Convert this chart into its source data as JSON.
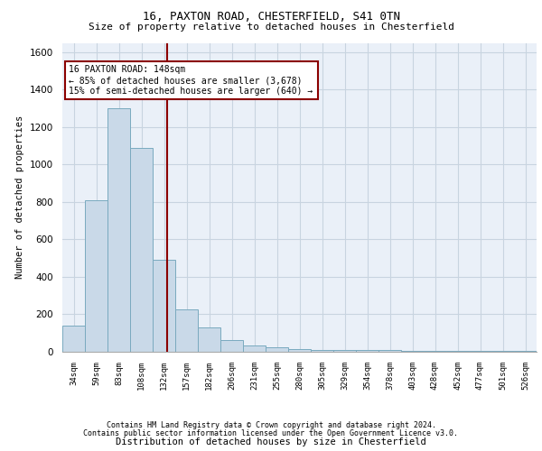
{
  "title1": "16, PAXTON ROAD, CHESTERFIELD, S41 0TN",
  "title2": "Size of property relative to detached houses in Chesterfield",
  "xlabel": "Distribution of detached houses by size in Chesterfield",
  "ylabel": "Number of detached properties",
  "bin_labels": [
    "34sqm",
    "59sqm",
    "83sqm",
    "108sqm",
    "132sqm",
    "157sqm",
    "182sqm",
    "206sqm",
    "231sqm",
    "255sqm",
    "280sqm",
    "305sqm",
    "329sqm",
    "354sqm",
    "378sqm",
    "403sqm",
    "428sqm",
    "452sqm",
    "477sqm",
    "501sqm",
    "526sqm"
  ],
  "bar_heights": [
    140,
    810,
    1300,
    1090,
    490,
    225,
    130,
    65,
    35,
    25,
    15,
    10,
    10,
    10,
    10,
    5,
    5,
    5,
    5,
    5,
    5
  ],
  "bar_color": "#c9d9e8",
  "bar_edge_color": "#7aaabf",
  "vline_x": 4.64,
  "vline_color": "#8b0000",
  "annotation_line1": "16 PAXTON ROAD: 148sqm",
  "annotation_line2": "← 85% of detached houses are smaller (3,678)",
  "annotation_line3": "15% of semi-detached houses are larger (640) →",
  "annotation_box_color": "#8b0000",
  "ylim": [
    0,
    1650
  ],
  "yticks": [
    0,
    200,
    400,
    600,
    800,
    1000,
    1200,
    1400,
    1600
  ],
  "grid_color": "#c8d4e0",
  "background_color": "#eaf0f8",
  "footer1": "Contains HM Land Registry data © Crown copyright and database right 2024.",
  "footer2": "Contains public sector information licensed under the Open Government Licence v3.0."
}
